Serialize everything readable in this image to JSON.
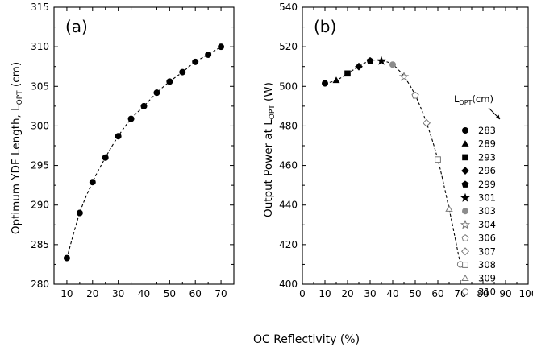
{
  "figure": {
    "shared_xlabel": "OC Reflectivity (%)"
  },
  "chart_data": [
    {
      "type": "scatter",
      "panel_label": "(a)",
      "xlabel": "",
      "ylabel_main": "Optimum YDF Length, L",
      "ylabel_sub": "OPT",
      "ylabel_tail": " (cm)",
      "xlim": [
        5,
        75
      ],
      "ylim": [
        280,
        315
      ],
      "xticks": [
        "10",
        "20",
        "30",
        "40",
        "50",
        "60",
        "70"
      ],
      "yticks": [
        "280",
        "285",
        "290",
        "295",
        "300",
        "305",
        "310",
        "315"
      ],
      "grid": false,
      "series": [
        {
          "x": [
            10,
            15,
            20,
            25,
            30,
            35,
            40,
            45,
            50,
            55,
            60,
            65,
            70
          ],
          "y": [
            283.3,
            289.0,
            292.9,
            296.0,
            298.7,
            300.9,
            302.5,
            304.2,
            305.6,
            306.8,
            308.1,
            309.0,
            310.0
          ]
        }
      ],
      "fit_line": "dashed"
    },
    {
      "type": "scatter",
      "panel_label": "(b)",
      "xlabel": "",
      "ylabel_main": "Output Power at L",
      "ylabel_sub": "OPT",
      "ylabel_tail": " (W)",
      "xlim": [
        0,
        100
      ],
      "ylim": [
        400,
        540
      ],
      "xticks": [
        "0",
        "10",
        "20",
        "30",
        "40",
        "50",
        "60",
        "70",
        "80",
        "90",
        "100"
      ],
      "yticks": [
        "400",
        "420",
        "440",
        "460",
        "480",
        "500",
        "520",
        "540"
      ],
      "grid": false,
      "legend": {
        "title_main": "L",
        "title_sub": "OPT",
        "title_tail": "(cm)",
        "placement": "right",
        "entries": [
          {
            "label": "283",
            "marker": "circle-filled"
          },
          {
            "label": "289",
            "marker": "triangle-filled"
          },
          {
            "label": "293",
            "marker": "square-filled"
          },
          {
            "label": "296",
            "marker": "diamond-filled"
          },
          {
            "label": "299",
            "marker": "pentagon-filled"
          },
          {
            "label": "301",
            "marker": "star-filled"
          },
          {
            "label": "303",
            "marker": "circle-gray"
          },
          {
            "label": "304",
            "marker": "star-open"
          },
          {
            "label": "306",
            "marker": "pentagon-open"
          },
          {
            "label": "307",
            "marker": "diamond-open"
          },
          {
            "label": "308",
            "marker": "square-open"
          },
          {
            "label": "309",
            "marker": "triangle-open"
          },
          {
            "label": "310",
            "marker": "circle-open"
          }
        ]
      },
      "series": [
        {
          "x": [
            10,
            15,
            20,
            25,
            30,
            35,
            40,
            45,
            50,
            55,
            60,
            65,
            70
          ],
          "y": [
            501.5,
            503.0,
            506.5,
            510.0,
            513.0,
            513.0,
            511.0,
            505.0,
            495.5,
            481.5,
            463.0,
            438.0,
            410.0
          ]
        }
      ],
      "fit_line": "dashed"
    }
  ]
}
